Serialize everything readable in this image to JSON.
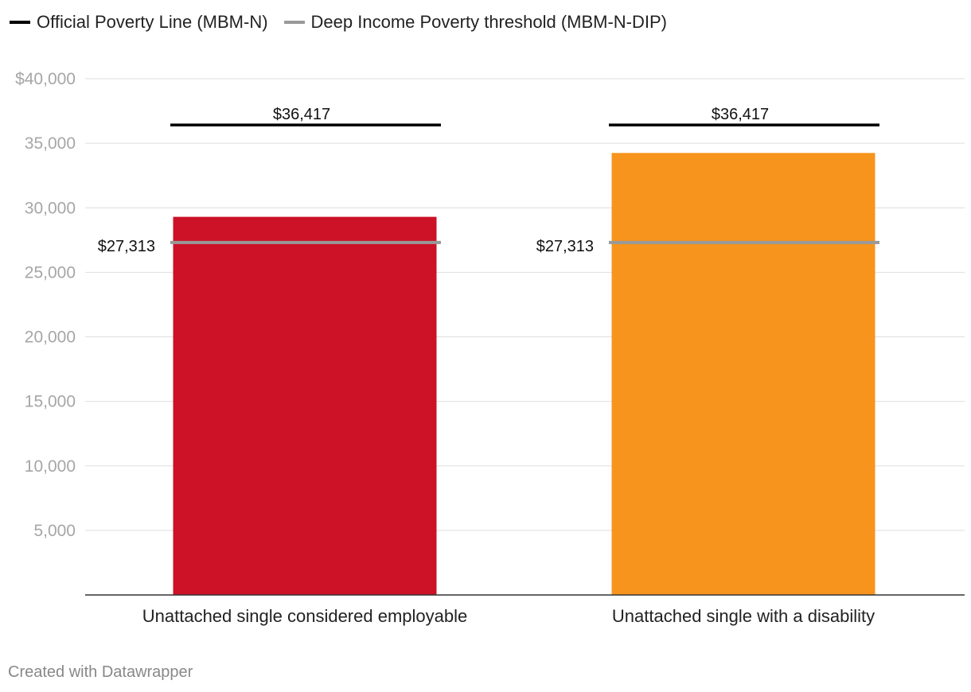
{
  "chart_data": {
    "type": "bar",
    "categories": [
      "Unattached single considered employable",
      "Unattached single with a disability"
    ],
    "values": [
      29300,
      34250
    ],
    "bar_colors": [
      "#cd1127",
      "#f7941d"
    ],
    "ylim": [
      0,
      40000
    ],
    "yticks": [
      {
        "value": 5000,
        "label": "5,000"
      },
      {
        "value": 10000,
        "label": "10,000"
      },
      {
        "value": 15000,
        "label": "15,000"
      },
      {
        "value": 20000,
        "label": "20,000"
      },
      {
        "value": 25000,
        "label": "25,000"
      },
      {
        "value": 30000,
        "label": "30,000"
      },
      {
        "value": 35000,
        "label": "35,000"
      },
      {
        "value": 40000,
        "label": "$40,000"
      }
    ],
    "grid": true,
    "reference_lines": [
      {
        "name": "Official Poverty Line (MBM-N)",
        "value": 36417,
        "label": "$36,417",
        "color": "#000000",
        "label_position": "above"
      },
      {
        "name": "Deep Income Poverty threshold (MBM-N-DIP)",
        "value": 27313,
        "label": "$27,313",
        "color": "#999999",
        "label_position": "left"
      }
    ],
    "legend": {
      "placement": "top-left",
      "items": [
        {
          "label": "Official Poverty Line (MBM-N)",
          "color": "#000000"
        },
        {
          "label": "Deep Income Poverty threshold (MBM-N-DIP)",
          "color": "#999999"
        }
      ]
    }
  },
  "footer": {
    "credit": "Created with Datawrapper"
  }
}
